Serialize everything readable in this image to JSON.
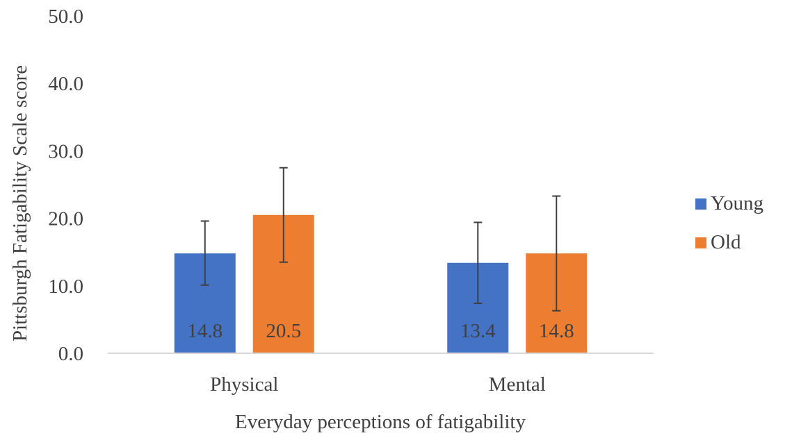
{
  "chart_data": {
    "type": "bar",
    "title": "",
    "xlabel": "Everyday perceptions of fatigability",
    "ylabel": "Pittsburgh Fatigability Scale score",
    "ylim": [
      0,
      50
    ],
    "yticks": [
      "0.0",
      "10.0",
      "20.0",
      "30.0",
      "40.0",
      "50.0"
    ],
    "categories": [
      "Physical",
      "Mental"
    ],
    "series": [
      {
        "name": "Young",
        "color": "#4472C4",
        "values": [
          14.8,
          13.4
        ],
        "labels": [
          "14.8",
          "13.4"
        ],
        "error_low": [
          10.1,
          7.4
        ],
        "error_high": [
          19.6,
          19.4
        ]
      },
      {
        "name": "Old",
        "color": "#ED7D31",
        "values": [
          20.5,
          14.8
        ],
        "labels": [
          "20.5",
          "14.8"
        ],
        "error_low": [
          13.5,
          6.3
        ],
        "error_high": [
          27.5,
          23.3
        ]
      }
    ],
    "grid": false,
    "legend_position": "right"
  },
  "colors": {
    "axis": "#D9D9D9",
    "text": "#404040",
    "error_bar": "#404040"
  }
}
